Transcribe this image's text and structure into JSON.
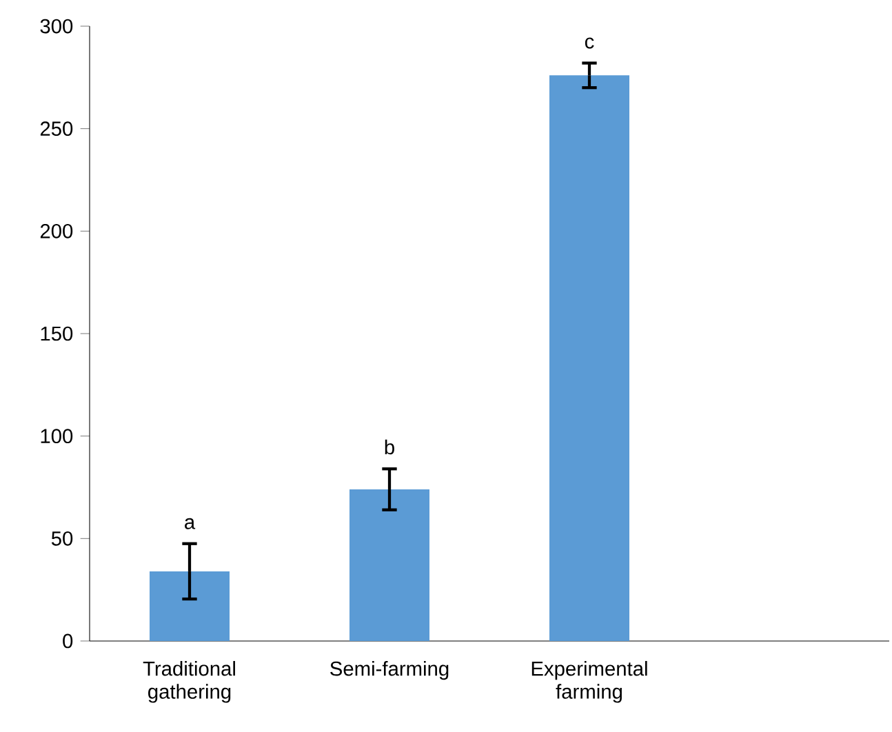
{
  "chart_data": {
    "type": "bar",
    "categories": [
      "Traditional gathering",
      "Semi-farming",
      "Experimental farming",
      null
    ],
    "values": [
      34,
      74,
      276,
      null
    ],
    "errors": [
      13.5,
      10,
      6,
      null
    ],
    "color": "#5b9bd5",
    "ylim": [
      0,
      300
    ],
    "yticks": [
      0,
      50,
      100,
      150,
      200,
      250,
      300
    ],
    "annotations": [
      "a",
      "b",
      "c"
    ]
  }
}
